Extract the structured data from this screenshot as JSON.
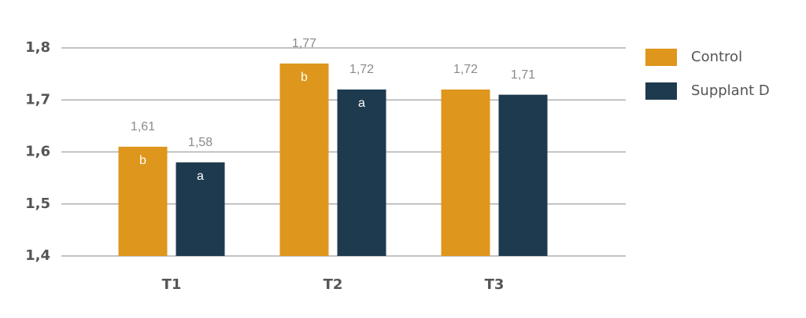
{
  "chart_data": {
    "type": "bar",
    "categories": [
      "T1",
      "T2",
      "T3"
    ],
    "series": [
      {
        "name": "Control",
        "color": "#df961d",
        "values": [
          1.61,
          1.77,
          1.72
        ],
        "value_labels": [
          "1,61",
          "1,77",
          "1,72"
        ],
        "significance_labels": [
          "b",
          "b",
          null
        ]
      },
      {
        "name": "Supplant D",
        "color": "#1e3a4f",
        "values": [
          1.58,
          1.72,
          1.71
        ],
        "value_labels": [
          "1,58",
          "1,72",
          "1,71"
        ],
        "significance_labels": [
          "a",
          "a",
          null
        ]
      }
    ],
    "ylim": [
      1.4,
      1.8
    ],
    "yticks": [
      {
        "value": 1.4,
        "label": "1,4"
      },
      {
        "value": 1.5,
        "label": "1,5"
      },
      {
        "value": 1.6,
        "label": "1,6"
      },
      {
        "value": 1.7,
        "label": "1,7"
      },
      {
        "value": 1.8,
        "label": "1,8"
      }
    ],
    "grid": true,
    "legend": "right"
  }
}
